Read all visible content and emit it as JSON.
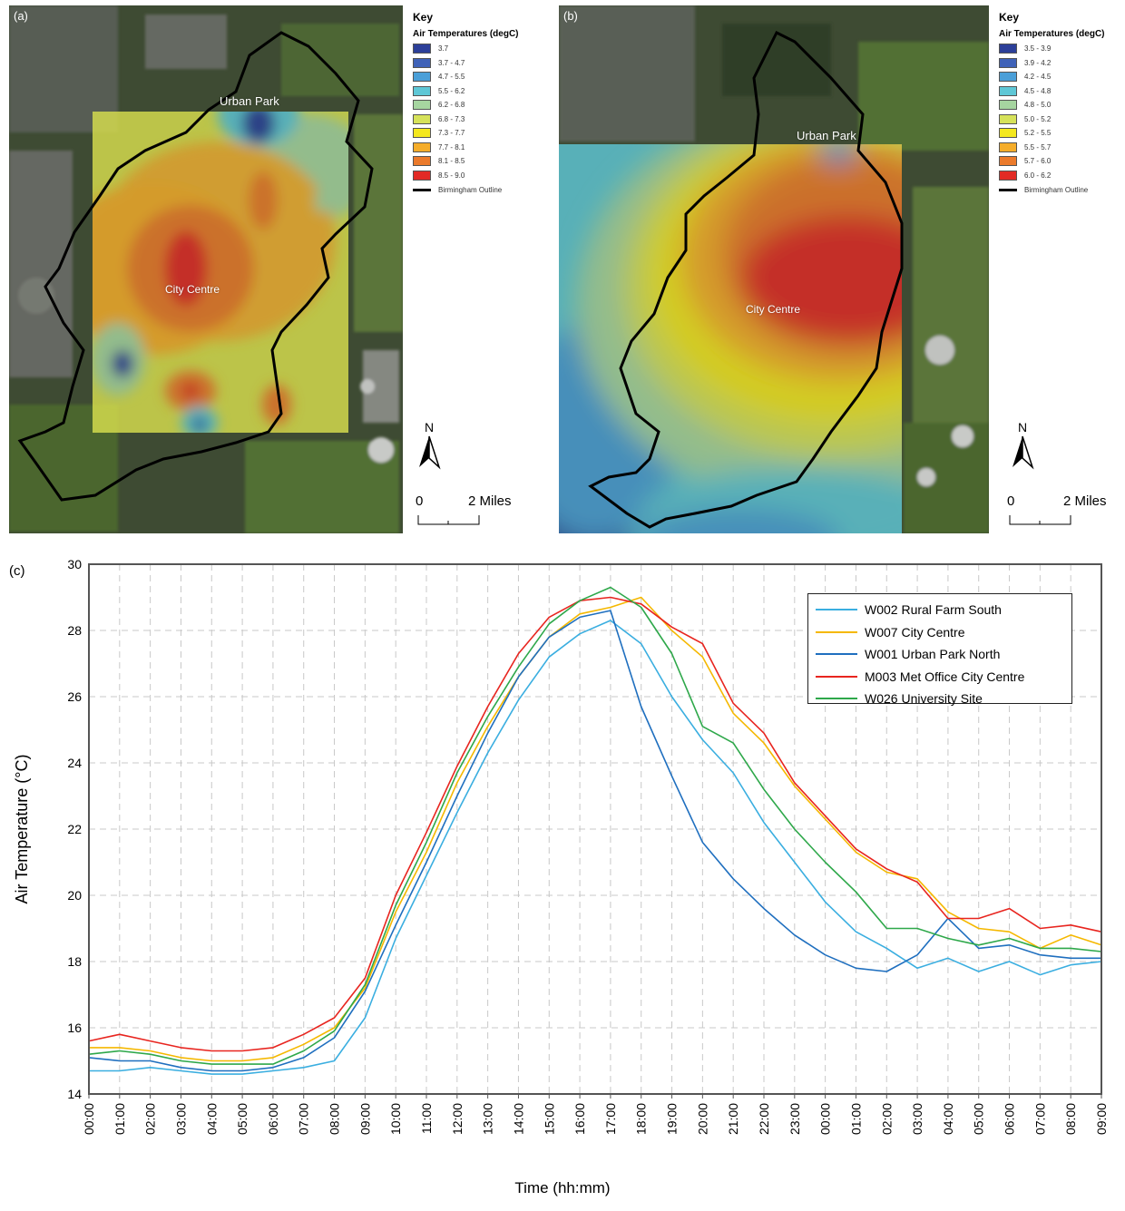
{
  "panel_a": {
    "label": "(a)",
    "key_title": "Key",
    "key_subtitle": "Air Temperatures (degC)",
    "legend": [
      {
        "label": "3.7",
        "color": "#2c3f99"
      },
      {
        "label": "3.7 - 4.7",
        "color": "#3f62b8"
      },
      {
        "label": "4.7 - 5.5",
        "color": "#4a9fd8"
      },
      {
        "label": "5.5 - 6.2",
        "color": "#5ec7d6"
      },
      {
        "label": "6.2 - 6.8",
        "color": "#a6d5a0"
      },
      {
        "label": "6.8 - 7.3",
        "color": "#d6e25a"
      },
      {
        "label": "7.3 - 7.7",
        "color": "#f4e81e"
      },
      {
        "label": "7.7 - 8.1",
        "color": "#f5ad2a"
      },
      {
        "label": "8.1 - 8.5",
        "color": "#eb7a2b"
      },
      {
        "label": "8.5 - 9.0",
        "color": "#e22a25"
      }
    ],
    "outline_label": "Birmingham Outline",
    "place_labels": {
      "urban_park": "Urban Park",
      "city_centre": "City Centre"
    },
    "north_label": "N",
    "scale_zero": "0",
    "scale_label": "2 Miles"
  },
  "panel_b": {
    "label": "(b)",
    "key_title": "Key",
    "key_subtitle": "Air Temperatures (degC)",
    "legend": [
      {
        "label": "3.5 - 3.9",
        "color": "#2c3f99"
      },
      {
        "label": "3.9 - 4.2",
        "color": "#3f62b8"
      },
      {
        "label": "4.2 - 4.5",
        "color": "#4a9fd8"
      },
      {
        "label": "4.5 - 4.8",
        "color": "#5ec7d6"
      },
      {
        "label": "4.8 - 5.0",
        "color": "#a6d5a0"
      },
      {
        "label": "5.0 - 5.2",
        "color": "#d6e25a"
      },
      {
        "label": "5.2 - 5.5",
        "color": "#f4e81e"
      },
      {
        "label": "5.5 - 5.7",
        "color": "#f5ad2a"
      },
      {
        "label": "5.7 - 6.0",
        "color": "#eb7a2b"
      },
      {
        "label": "6.0 - 6.2",
        "color": "#e22a25"
      }
    ],
    "outline_label": "Birmingham Outline",
    "place_labels": {
      "urban_park": "Urban Park",
      "city_centre": "City Centre"
    },
    "north_label": "N",
    "scale_zero": "0",
    "scale_label": "2 Miles"
  },
  "chart_data": {
    "type": "line",
    "panel_label": "(c)",
    "xlabel": "Time (hh:mm)",
    "ylabel": "Air Temperature (°C)",
    "ylim": [
      14,
      30
    ],
    "yticks": [
      14,
      16,
      18,
      20,
      22,
      24,
      26,
      28,
      30
    ],
    "x_tick_labels": [
      "00:00",
      "01:00",
      "02:00",
      "03:00",
      "04:00",
      "05:00",
      "06:00",
      "07:00",
      "08:00",
      "09:00",
      "10:00",
      "11:00",
      "12:00",
      "13:00",
      "14:00",
      "15:00",
      "16:00",
      "17:00",
      "18:00",
      "19:00",
      "20:00",
      "21:00",
      "22:00",
      "23:00",
      "00:00",
      "01:00",
      "02:00",
      "03:00",
      "04:00",
      "05:00",
      "06:00",
      "07:00",
      "08:00",
      "09:00"
    ],
    "grid": true,
    "legend_position": "top-right",
    "series": [
      {
        "name": "W002 Rural Farm South",
        "color": "#3aaee0",
        "values": [
          14.7,
          14.7,
          14.8,
          14.7,
          14.6,
          14.6,
          14.7,
          14.8,
          15.0,
          16.3,
          18.7,
          20.6,
          22.5,
          24.3,
          25.9,
          27.2,
          27.9,
          28.3,
          27.6,
          26.0,
          24.7,
          23.7,
          22.2,
          21.0,
          19.8,
          18.9,
          18.4,
          17.8,
          18.1,
          17.7,
          18.0,
          17.6,
          17.9,
          18.0
        ]
      },
      {
        "name": "W007 City Centre",
        "color": "#f5b800",
        "values": [
          15.4,
          15.4,
          15.3,
          15.1,
          15.0,
          15.0,
          15.1,
          15.5,
          16.0,
          17.2,
          19.5,
          21.3,
          23.4,
          25.1,
          26.6,
          27.8,
          28.5,
          28.7,
          29.0,
          28.0,
          27.2,
          25.5,
          24.6,
          23.3,
          22.3,
          21.3,
          20.7,
          20.5,
          19.5,
          19.0,
          18.9,
          18.4,
          18.8,
          18.5
        ]
      },
      {
        "name": "W001 Urban Park North",
        "color": "#1f6fbf",
        "values": [
          15.1,
          15.0,
          15.0,
          14.8,
          14.7,
          14.7,
          14.8,
          15.1,
          15.7,
          17.1,
          19.1,
          21.0,
          23.0,
          24.9,
          26.6,
          27.8,
          28.4,
          28.6,
          25.7,
          23.6,
          21.6,
          20.5,
          19.6,
          18.8,
          18.2,
          17.8,
          17.7,
          18.2,
          19.3,
          18.4,
          18.5,
          18.2,
          18.1,
          18.1
        ]
      },
      {
        "name": "M003 Met Office City Centre",
        "color": "#e8251f",
        "values": [
          15.6,
          15.8,
          15.6,
          15.4,
          15.3,
          15.3,
          15.4,
          15.8,
          16.3,
          17.5,
          20.0,
          21.9,
          23.9,
          25.7,
          27.3,
          28.4,
          28.9,
          29.0,
          28.8,
          28.1,
          27.6,
          25.8,
          24.9,
          23.4,
          22.4,
          21.4,
          20.8,
          20.4,
          19.3,
          19.3,
          19.6,
          19.0,
          19.1,
          18.9
        ]
      },
      {
        "name": "W026 University Site",
        "color": "#2ea84a",
        "values": [
          15.2,
          15.3,
          15.2,
          15.0,
          14.9,
          14.9,
          14.9,
          15.3,
          15.9,
          17.3,
          19.7,
          21.6,
          23.7,
          25.4,
          26.9,
          28.2,
          28.9,
          29.3,
          28.7,
          27.3,
          25.1,
          24.6,
          23.2,
          22.0,
          21.0,
          20.1,
          19.0,
          19.0,
          18.7,
          18.5,
          18.7,
          18.4,
          18.4,
          18.3
        ]
      }
    ]
  }
}
